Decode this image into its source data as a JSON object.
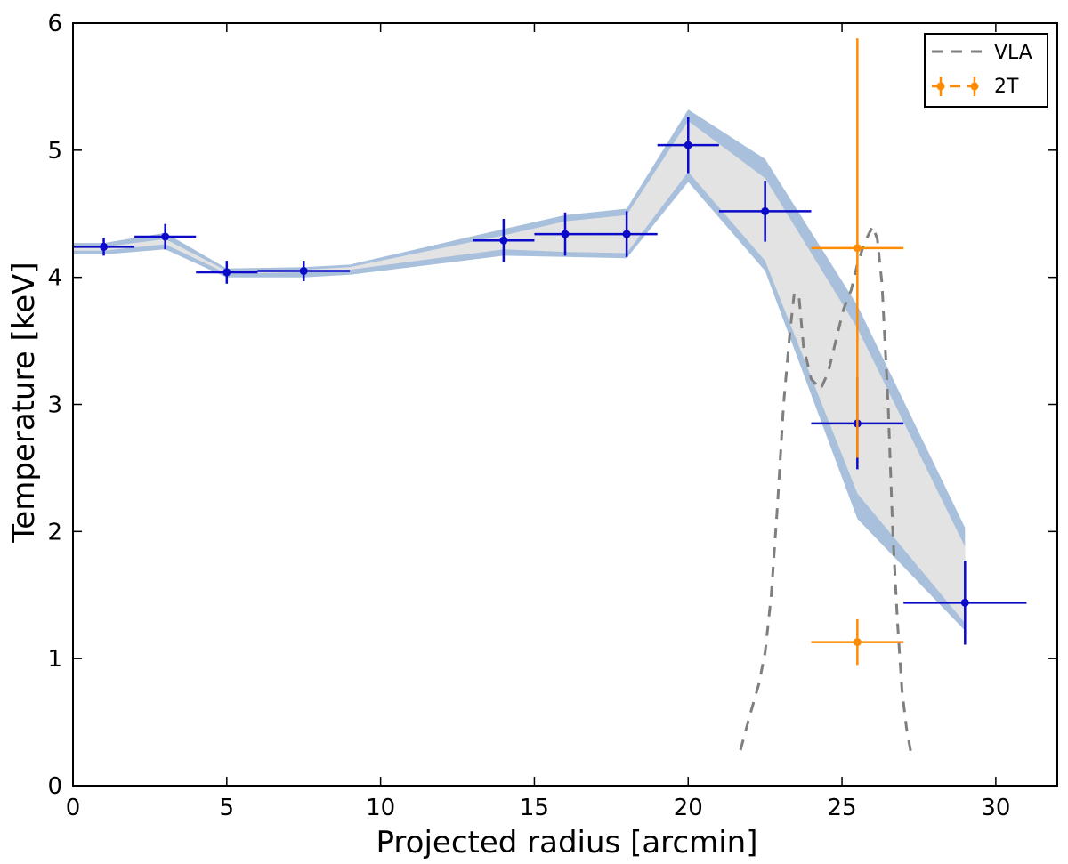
{
  "chart_data": {
    "type": "scatter",
    "title": "",
    "xlabel": "Projected radius [arcmin]",
    "ylabel": "Temperature [keV]",
    "xlim": [
      0,
      32
    ],
    "ylim": [
      0,
      6
    ],
    "xticks": [
      0,
      5,
      10,
      15,
      20,
      25,
      30
    ],
    "yticks": [
      0,
      1,
      2,
      3,
      4,
      5,
      6
    ],
    "grid": false,
    "legend_position": "top-right",
    "colors": {
      "main": "#0a0ac8",
      "two_t": "#ff8c00",
      "band_edge": "#a8c0dc",
      "band_fill": "#e3e3e3",
      "vla": "#7f7f7f"
    },
    "band": {
      "x": [
        0,
        1,
        3,
        5,
        7.5,
        9,
        14,
        16,
        18,
        20,
        22.5,
        25.5,
        29
      ],
      "upper": [
        4.27,
        4.27,
        4.35,
        4.07,
        4.08,
        4.1,
        4.38,
        4.49,
        4.54,
        5.32,
        4.93,
        3.78,
        2.03
      ],
      "upper_inner": [
        4.24,
        4.24,
        4.3,
        4.05,
        4.06,
        4.08,
        4.33,
        4.44,
        4.49,
        5.23,
        4.78,
        3.6,
        1.88
      ],
      "lower_inner": [
        4.21,
        4.21,
        4.26,
        4.03,
        4.04,
        4.06,
        4.22,
        4.2,
        4.19,
        4.83,
        4.13,
        2.3,
        1.28
      ],
      "lower": [
        4.18,
        4.18,
        4.22,
        4.0,
        4.0,
        4.02,
        4.17,
        4.16,
        4.15,
        4.75,
        4.05,
        2.1,
        1.22
      ]
    },
    "series": [
      {
        "name": "main",
        "x": [
          1,
          3,
          5,
          7.5,
          14,
          16,
          18,
          20,
          22.5,
          25.5,
          29
        ],
        "xerr": [
          1,
          1,
          1,
          1.5,
          1,
          1,
          1,
          1,
          1.5,
          1.5,
          2
        ],
        "y": [
          4.24,
          4.32,
          4.04,
          4.05,
          4.29,
          4.34,
          4.34,
          5.04,
          4.52,
          2.85,
          1.44
        ],
        "yerr": [
          0.07,
          0.1,
          0.09,
          0.08,
          0.17,
          0.17,
          0.18,
          0.22,
          0.24,
          0.36,
          0.33
        ]
      },
      {
        "name": "2T",
        "x": [
          25.5,
          25.5
        ],
        "xerr": [
          1.5,
          1.5
        ],
        "y": [
          4.23,
          1.13
        ],
        "yerr": [
          1.65,
          0.18
        ]
      }
    ],
    "vla": {
      "name": "VLA",
      "x": [
        21.7,
        22.0,
        22.3,
        22.5,
        22.7,
        22.9,
        23.1,
        23.3,
        23.45,
        23.6,
        23.75,
        24.0,
        24.3,
        24.55,
        24.8,
        25.05,
        25.3,
        25.5,
        25.7,
        25.85,
        26.0,
        26.15,
        26.3,
        26.5,
        26.65,
        26.8,
        26.95,
        27.1,
        27.25
      ],
      "y": [
        0.28,
        0.55,
        0.8,
        1.05,
        1.5,
        2.2,
        3.0,
        3.55,
        3.88,
        3.85,
        3.45,
        3.2,
        3.12,
        3.25,
        3.5,
        3.75,
        3.9,
        4.1,
        4.25,
        4.33,
        4.4,
        4.3,
        3.95,
        3.0,
        2.0,
        1.3,
        0.75,
        0.45,
        0.25
      ]
    },
    "legend": [
      {
        "label": "VLA",
        "style": "dashed"
      },
      {
        "label": "2T",
        "style": "errorbar"
      }
    ]
  }
}
